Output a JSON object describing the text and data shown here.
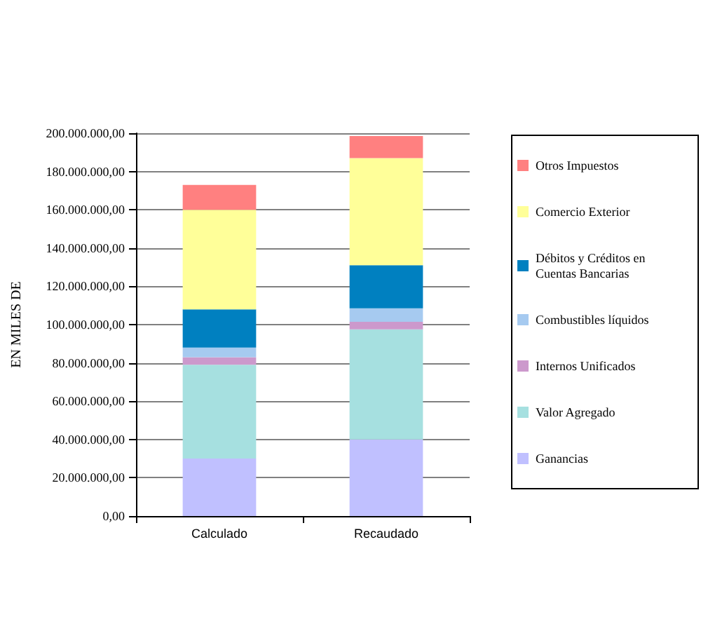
{
  "chart_data": {
    "type": "bar",
    "stacked": true,
    "categories": [
      "Calculado",
      "Recaudado"
    ],
    "ylabel": "EN MILES DE",
    "series": [
      {
        "name": "Ganancias",
        "color": "#c0c0ff",
        "values": [
          30000000,
          40000000
        ]
      },
      {
        "name": "Valor Agregado",
        "color": "#a6e0e0",
        "values": [
          49000000,
          57500000
        ]
      },
      {
        "name": "Internos Unificados",
        "color": "#cc99cc",
        "values": [
          4000000,
          4000000
        ]
      },
      {
        "name": "Combustibles líquidos",
        "color": "#a6caf0",
        "values": [
          5000000,
          7000000
        ]
      },
      {
        "name": "Débitos y Créditos en Cuentas Bancarias",
        "color": "#0080c0",
        "values": [
          20000000,
          22500000
        ]
      },
      {
        "name": "Comercio Exterior",
        "color": "#ffff99",
        "values": [
          52000000,
          56000000
        ]
      },
      {
        "name": "Otros Impuestos",
        "color": "#ff8080",
        "values": [
          13000000,
          11500000
        ]
      }
    ],
    "ylim": [
      0,
      200000000
    ],
    "yticks": [
      {
        "value": 0,
        "label": "0,00"
      },
      {
        "value": 20000000,
        "label": "20.000.000,00"
      },
      {
        "value": 40000000,
        "label": "40.000.000,00"
      },
      {
        "value": 60000000,
        "label": "60.000.000,00"
      },
      {
        "value": 80000000,
        "label": "80.000.000,00"
      },
      {
        "value": 100000000,
        "label": "100.000.000,00"
      },
      {
        "value": 120000000,
        "label": "120.000.000,00"
      },
      {
        "value": 140000000,
        "label": "140.000.000,00"
      },
      {
        "value": 160000000,
        "label": "160.000.000,00"
      },
      {
        "value": 180000000,
        "label": "180.000.000,00"
      },
      {
        "value": 200000000,
        "label": "200.000.000,00"
      }
    ],
    "grid": "y",
    "legend": "right"
  }
}
